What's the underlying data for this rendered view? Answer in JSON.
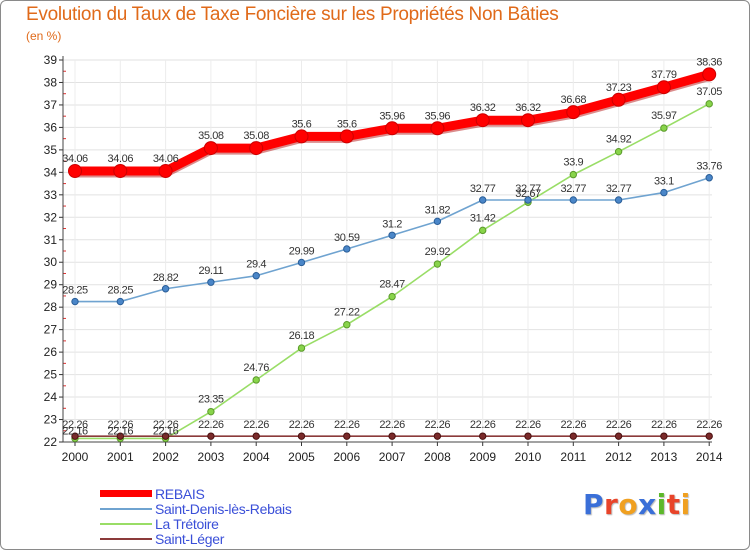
{
  "chart_data": {
    "type": "line",
    "title": "Evolution du Taux de Taxe Foncière sur les Propriétés Non Bâties",
    "subtitle": "(en %)",
    "x": [
      "2000",
      "2001",
      "2002",
      "2003",
      "2004",
      "2005",
      "2006",
      "2007",
      "2008",
      "2009",
      "2010",
      "2011",
      "2012",
      "2013",
      "2014"
    ],
    "ylim": [
      22,
      39
    ],
    "yticks": [
      22,
      23,
      24,
      25,
      26,
      27,
      28,
      29,
      30,
      31,
      32,
      33,
      34,
      35,
      36,
      37,
      38,
      39
    ],
    "grid": true,
    "legend_position": "bottom-left",
    "series": [
      {
        "name": "REBAIS",
        "color": "#ff0000",
        "values": [
          34.06,
          34.06,
          34.06,
          35.08,
          35.08,
          35.6,
          35.6,
          35.96,
          35.96,
          36.32,
          36.32,
          36.68,
          37.23,
          37.79,
          38.36
        ],
        "labels": [
          "34.06",
          "34.06",
          "34.06",
          "35.08",
          "35.08",
          "35.6",
          "35.6",
          "35.96",
          "35.96",
          "36.32",
          "36.32",
          "36.68",
          "37.23",
          "37.79",
          "38.36"
        ]
      },
      {
        "name": "Saint-Denis-lès-Rebais",
        "color": "#6fa3d0",
        "values": [
          28.25,
          28.25,
          28.82,
          29.11,
          29.4,
          29.99,
          30.59,
          31.2,
          31.82,
          32.77,
          32.77,
          32.77,
          32.77,
          33.1,
          33.76
        ],
        "labels": [
          "28.25",
          "28.25",
          "28.82",
          "29.11",
          "29.4",
          "29.99",
          "30.59",
          "31.2",
          "31.82",
          "32.77",
          "32.77",
          "32.77",
          "32.77",
          "33.1",
          "33.76"
        ]
      },
      {
        "name": "La Trétoire",
        "color": "#99dd66",
        "values": [
          22.16,
          22.16,
          22.16,
          23.35,
          24.76,
          26.18,
          27.22,
          28.47,
          29.92,
          31.42,
          32.67,
          33.9,
          34.92,
          35.97,
          37.05
        ],
        "labels": [
          "22.16",
          "22.16",
          "22.16",
          "23.35",
          "24.76",
          "26.18",
          "27.22",
          "28.47",
          "29.92",
          "31.42",
          "32.67",
          "33.9",
          "34.92",
          "35.97",
          "37.05"
        ]
      },
      {
        "name": "Saint-Léger",
        "color": "#8b3a3a",
        "values": [
          22.26,
          22.26,
          22.26,
          22.26,
          22.26,
          22.26,
          22.26,
          22.26,
          22.26,
          22.26,
          22.26,
          22.26,
          22.26,
          22.26,
          22.26
        ],
        "labels": [
          "22.26",
          "22.26",
          "22.26",
          "22.26",
          "22.26",
          "22.26",
          "22.26",
          "22.26",
          "22.26",
          "22.26",
          "22.26",
          "22.26",
          "22.26",
          "22.26",
          "22.26"
        ]
      }
    ]
  },
  "legend": {
    "items": [
      {
        "label": "REBAIS",
        "color": "#ff0000"
      },
      {
        "label": "Saint-Denis-lès-Rebais",
        "color": "#6fa3d0"
      },
      {
        "label": "La  Trétoire",
        "color": "#99dd66"
      },
      {
        "label": "Saint-Léger",
        "color": "#8b3a3a"
      }
    ]
  },
  "logo": {
    "text": "Proxiti",
    "letter_colors": [
      "#3a6fd8",
      "#e8442a",
      "#f0a020",
      "#3a6fd8",
      "#5cb82a",
      "#e8442a",
      "#f0a020"
    ]
  }
}
